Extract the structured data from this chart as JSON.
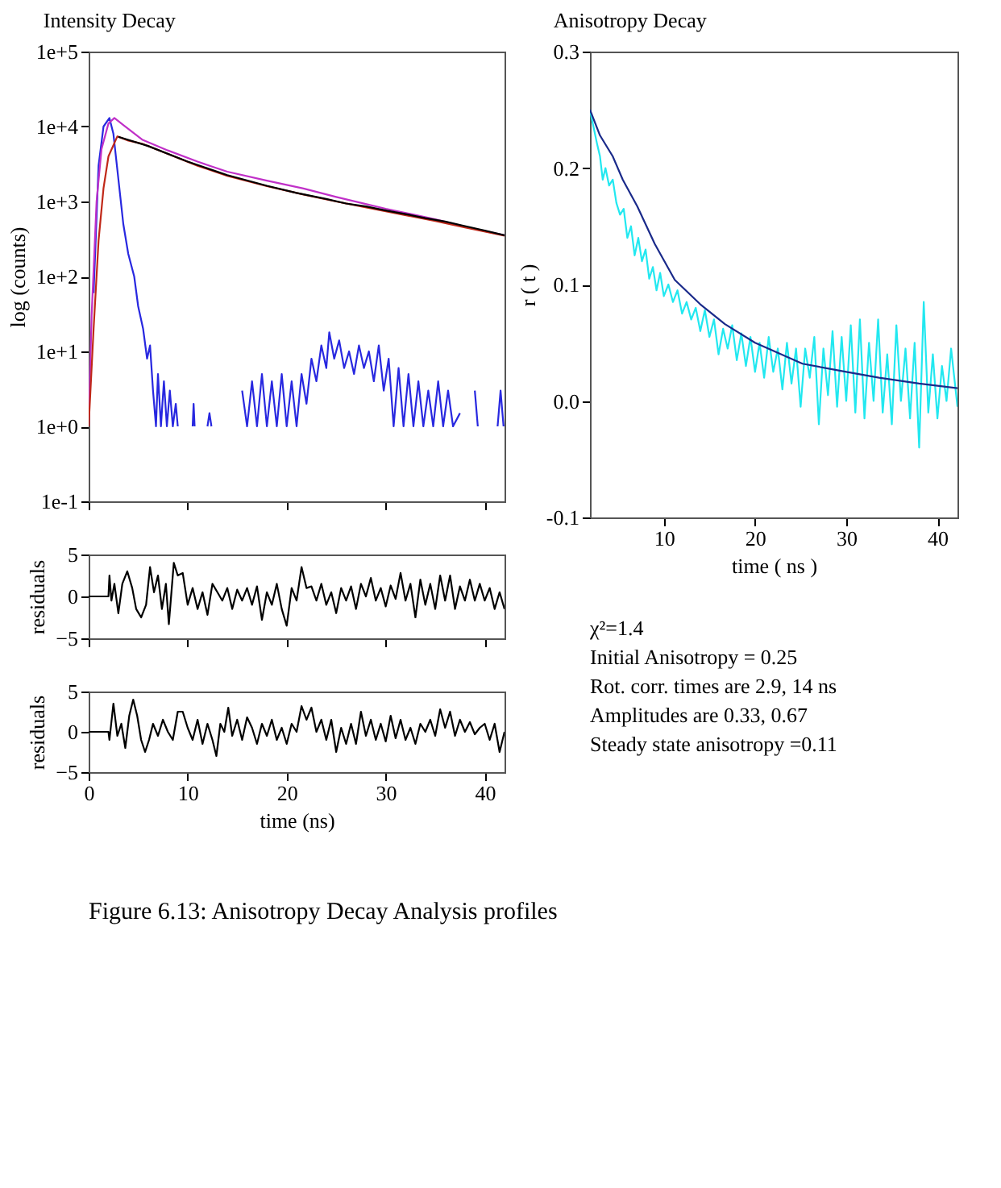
{
  "chart_data": [
    {
      "type": "line",
      "title": "Intensity Decay",
      "ylabel": "log (counts)",
      "log": "y",
      "xlim": [
        0,
        42
      ],
      "xticks": [
        0,
        10,
        20,
        30,
        40
      ],
      "ylim": [
        0.1,
        100000
      ],
      "yticks": [
        {
          "value": 0.1,
          "label": "1e-1"
        },
        {
          "value": 1,
          "label": "1e+0"
        },
        {
          "value": 10,
          "label": "1e+1"
        },
        {
          "value": 100,
          "label": "1e+2"
        },
        {
          "value": 1000,
          "label": "1e+3"
        },
        {
          "value": 10000,
          "label": "1e+4"
        },
        {
          "value": 100000,
          "label": "1e+5"
        }
      ],
      "tick_labels": "y",
      "series": [
        {
          "color": "#2828e0",
          "x": [
            0.5,
            1.0,
            1.5,
            2.1,
            2.5,
            3.0,
            3.5,
            4.0,
            4.6,
            5.0,
            5.5,
            5.9,
            6.2,
            6.5,
            6.8,
            7.0,
            7.3,
            7.6,
            7.9,
            8.2,
            8.5,
            8.8,
            9.0,
            9.5,
            10.5,
            10.6,
            10.7,
            11,
            12,
            12.2,
            12.4,
            13,
            15.5,
            16,
            16.5,
            17,
            17.5,
            18,
            18.5,
            19,
            19.5,
            20,
            20.5,
            21,
            21.5,
            22,
            22.5,
            23,
            23.5,
            24,
            24.3,
            24.8,
            25.3,
            25.8,
            26.3,
            26.8,
            27.3,
            27.8,
            28.3,
            28.8,
            29.3,
            29.8,
            30.3,
            30.8,
            31.3,
            31.8,
            32.3,
            32.8,
            33.3,
            33.8,
            34.3,
            34.8,
            35.3,
            35.8,
            36.3,
            36.8,
            37.5,
            38,
            39,
            39.3,
            39.8,
            41.3,
            41.6,
            41.9
          ],
          "values": [
            60,
            3000,
            10000,
            13000,
            8000,
            2000,
            500,
            200,
            100,
            40,
            20,
            8,
            12,
            3,
            1,
            5,
            1,
            4,
            1,
            3,
            1,
            2,
            1,
            null,
            1,
            2,
            1,
            null,
            1,
            1.5,
            1,
            null,
            3,
            1,
            4,
            1,
            5,
            1,
            4,
            1,
            5,
            1,
            4,
            1,
            5,
            2,
            8,
            4,
            12,
            6,
            18,
            8,
            14,
            6,
            10,
            5,
            12,
            6,
            10,
            4,
            12,
            3,
            8,
            1,
            6,
            1,
            5,
            1,
            4,
            1,
            3,
            1,
            4,
            1,
            3,
            1,
            1.5,
            null,
            3,
            1,
            null,
            1,
            3,
            1
          ]
        },
        {
          "color": "#c030c8",
          "x": [
            0,
            0.3,
            0.8,
            1.3,
            2.0,
            2.6,
            3.5,
            5.4,
            8,
            11,
            14,
            18,
            21.7,
            25,
            30,
            35,
            38,
            42
          ],
          "values": [
            1,
            30,
            1000,
            5000,
            11000,
            13000,
            10500,
            6700,
            4800,
            3400,
            2500,
            1900,
            1490,
            1150,
            800,
            580,
            460,
            355
          ]
        },
        {
          "color": "#c02818",
          "x": [
            0,
            0.5,
            1,
            1.5,
            2,
            2.9,
            4,
            5.4,
            8,
            11,
            14,
            18,
            21.7,
            25,
            30,
            35,
            38,
            42
          ],
          "values": [
            1,
            20,
            300,
            1500,
            4000,
            7400,
            6500,
            5900,
            4300,
            3000,
            2200,
            1600,
            1240,
            1000,
            740,
            550,
            450,
            350
          ]
        },
        {
          "color": "#000000",
          "x": [
            3.0,
            6,
            10,
            14,
            18,
            21,
            24,
            26,
            28,
            30,
            32,
            34,
            36,
            38,
            40,
            42
          ],
          "values": [
            7300,
            5500,
            3400,
            2250,
            1620,
            1300,
            1080,
            940,
            860,
            760,
            680,
            600,
            540,
            470,
            410,
            355
          ]
        }
      ]
    },
    {
      "type": "line",
      "ylabel": "residuals",
      "xlim": [
        0,
        42
      ],
      "xticks": [
        0,
        10,
        20,
        30,
        40
      ],
      "ylim": [
        -5,
        5
      ],
      "yticks": [
        -5,
        0,
        5
      ],
      "tick_labels": "y",
      "series": [
        {
          "color": "#000000",
          "x": [
            0,
            2,
            2.1,
            2.3,
            2.6,
            3.0,
            3.4,
            3.9,
            4.4,
            4.8,
            5.3,
            5.8,
            6.2,
            6.6,
            7.0,
            7.4,
            7.8,
            8.1,
            8.6,
            9.0,
            9.5,
            10,
            10.5,
            11,
            11.5,
            12,
            12.5,
            13,
            13.5,
            14,
            14.5,
            15,
            15.5,
            16,
            16.5,
            17,
            17.5,
            18,
            18.5,
            19,
            19.5,
            20,
            20.5,
            21,
            21.5,
            22,
            22.5,
            23,
            23.5,
            24,
            24.5,
            25,
            25.5,
            26,
            26.5,
            27,
            27.5,
            28,
            28.5,
            29,
            29.5,
            30,
            30.5,
            31,
            31.5,
            32,
            32.5,
            33,
            33.5,
            34,
            34.5,
            35,
            35.5,
            36,
            36.5,
            37,
            37.5,
            38,
            38.5,
            39,
            39.5,
            40,
            40.5,
            41,
            41.5,
            42
          ],
          "values": [
            0,
            0,
            2.5,
            -0.5,
            1.5,
            -2.0,
            1.5,
            3.0,
            1,
            -1.5,
            -2.5,
            -1.0,
            3.5,
            0.5,
            2.5,
            -1.5,
            1.5,
            -3.3,
            4.0,
            2.5,
            2.8,
            -1,
            1,
            -1.5,
            0.5,
            -2.2,
            1.5,
            0.5,
            -0.5,
            1,
            -1.5,
            0.8,
            -0.5,
            1,
            -1,
            1.2,
            -2.8,
            0.5,
            -1,
            1.5,
            -1.5,
            -3.5,
            1,
            -0.5,
            3.5,
            1,
            1.2,
            -0.5,
            1.5,
            -1,
            0.5,
            -2,
            1,
            -0.5,
            1.2,
            -1.5,
            1.5,
            0,
            2.2,
            -0.5,
            1,
            -1.2,
            1.3,
            -0.3,
            2.8,
            -0.5,
            1.5,
            -2.5,
            2,
            -1,
            1.5,
            -1.5,
            2.5,
            -0.5,
            2.5,
            -1.5,
            1.2,
            -0.5,
            2,
            -0.5,
            1.5,
            -0.5,
            1.0,
            -1.5,
            0.5,
            -1.5
          ]
        }
      ]
    },
    {
      "type": "line",
      "ylabel": "residuals",
      "xlabel": "time (ns)",
      "xlim": [
        0,
        42
      ],
      "xticks": [
        0,
        10,
        20,
        30,
        40
      ],
      "ylim": [
        -5,
        5
      ],
      "yticks": [
        -5,
        0,
        5
      ],
      "series": [
        {
          "color": "#000000",
          "x": [
            0,
            2,
            2.1,
            2.5,
            2.9,
            3.3,
            3.7,
            4.1,
            4.5,
            4.9,
            5.3,
            5.7,
            6.1,
            6.5,
            7,
            7.5,
            8,
            8.5,
            9,
            9.5,
            10,
            10.5,
            11,
            11.5,
            12,
            12.5,
            12.9,
            13.3,
            13.7,
            14.1,
            14.5,
            15,
            15.5,
            16,
            16.5,
            17,
            17.5,
            18,
            18.5,
            19,
            19.5,
            20,
            20.5,
            21,
            21.5,
            22,
            22.5,
            23,
            23.5,
            24,
            24.5,
            25,
            25.5,
            26,
            26.5,
            27,
            27.5,
            28,
            28.5,
            29,
            29.5,
            30,
            30.5,
            31,
            31.5,
            32,
            32.5,
            33,
            33.5,
            34,
            34.5,
            35,
            35.5,
            36,
            36.5,
            37,
            37.5,
            38,
            38.5,
            39,
            39.5,
            40,
            40.5,
            41,
            41.5,
            42
          ],
          "values": [
            0,
            0,
            -1,
            3.5,
            -0.5,
            1,
            -2,
            2,
            4.0,
            2,
            -1,
            -2.5,
            -1,
            1,
            -0.5,
            1.5,
            0,
            -1,
            2.5,
            2.5,
            0.5,
            -1,
            1.5,
            -1.5,
            1,
            -1,
            -3,
            1,
            0,
            3,
            -0.5,
            1.5,
            -1,
            1.8,
            0.5,
            -1.5,
            1,
            -0.5,
            1.5,
            -1,
            0.5,
            -1.5,
            1,
            0,
            3.2,
            1.5,
            3.0,
            0,
            1.5,
            -1,
            1.5,
            -2.5,
            0.5,
            -1.5,
            1,
            -1.5,
            2.5,
            -0.5,
            1.5,
            -1,
            1,
            -1.2,
            2,
            -0.8,
            1.5,
            -1,
            0.5,
            -1.5,
            1,
            0,
            1.5,
            -0.5,
            2.8,
            0.5,
            2.5,
            -0.5,
            1.5,
            0,
            1.2,
            -0.3,
            0.5,
            1,
            -1,
            1,
            -2.5,
            0
          ]
        }
      ]
    },
    {
      "type": "line",
      "title": "Anisotropy Decay",
      "xlabel": "time ( ns )",
      "ylabel": "r ( t )",
      "xlim": [
        1.9,
        42.2
      ],
      "xticks": [
        10,
        20,
        30,
        40
      ],
      "ylim": [
        -0.1,
        0.3
      ],
      "yticks": [
        {
          "value": -0.1,
          "label": "-0.1"
        },
        {
          "value": 0,
          "label": "0.0"
        },
        {
          "value": 0.1,
          "label": "0.1"
        },
        {
          "value": 0.2,
          "label": "0.2"
        },
        {
          "value": 0.3,
          "label": "0.3"
        }
      ],
      "series": [
        {
          "color": "#22e8f0",
          "x": [
            1.9,
            2.3,
            2.7,
            3.0,
            3.3,
            3.6,
            4.0,
            4.4,
            4.8,
            5.2,
            5.6,
            6.0,
            6.4,
            6.8,
            7.2,
            7.6,
            8.0,
            8.4,
            8.8,
            9.2,
            9.6,
            10,
            10.5,
            11,
            11.5,
            12,
            12.5,
            13,
            13.5,
            14,
            14.5,
            15,
            15.5,
            16,
            16.5,
            17,
            17.5,
            18,
            18.5,
            19,
            19.5,
            20,
            20.5,
            21,
            21.5,
            22,
            22.5,
            23,
            23.5,
            24,
            24.5,
            25,
            25.5,
            26,
            26.5,
            27,
            27.5,
            28,
            28.5,
            29,
            29.5,
            30,
            30.5,
            31,
            31.5,
            32,
            32.5,
            33,
            33.5,
            34,
            34.5,
            35,
            35.5,
            36,
            36.5,
            37,
            37.5,
            38,
            38.5,
            39,
            39.5,
            40,
            40.5,
            41,
            41.5,
            42.2
          ],
          "values": [
            0.25,
            0.235,
            0.22,
            0.21,
            0.19,
            0.2,
            0.185,
            0.19,
            0.17,
            0.16,
            0.165,
            0.14,
            0.15,
            0.125,
            0.14,
            0.12,
            0.13,
            0.105,
            0.115,
            0.095,
            0.11,
            0.09,
            0.1,
            0.085,
            0.095,
            0.075,
            0.085,
            0.07,
            0.08,
            0.06,
            0.078,
            0.055,
            0.07,
            0.04,
            0.062,
            0.045,
            0.065,
            0.035,
            0.058,
            0.03,
            0.055,
            0.025,
            0.05,
            0.02,
            0.055,
            0.025,
            0.045,
            0.01,
            0.05,
            0.015,
            0.045,
            -0.005,
            0.045,
            0.02,
            0.055,
            -0.02,
            0.045,
            0.005,
            0.06,
            -0.005,
            0.055,
            0.0,
            0.065,
            -0.01,
            0.07,
            -0.015,
            0.05,
            0.0,
            0.07,
            -0.01,
            0.04,
            -0.02,
            0.065,
            0.0,
            0.045,
            -0.015,
            0.05,
            -0.04,
            0.085,
            -0.01,
            0.04,
            -0.015,
            0.03,
            0.0,
            0.045,
            -0.005
          ]
        },
        {
          "color": "#1a2a8a",
          "x": [
            1.9,
            3,
            4.4,
            5.5,
            7.1,
            9,
            11.2,
            14,
            16.7,
            20,
            25.2,
            30,
            33.6,
            38,
            42.2
          ],
          "values": [
            0.25,
            0.228,
            0.21,
            0.19,
            0.167,
            0.135,
            0.104,
            0.083,
            0.066,
            0.05,
            0.032,
            0.025,
            0.02,
            0.015,
            0.011
          ]
        }
      ]
    },
    {
      "type": "other",
      "annotations": [
        "χ²=1.4",
        "Initial Anisotropy = 0.25",
        "Rot. corr. times are  2.9, 14 ns",
        "Amplitudes are  0.33, 0.67",
        "Steady state anisotropy =0.11"
      ]
    },
    {
      "type": "other",
      "annotations": [
        "Figure 6.13: Anisotropy Decay Analysis profiles"
      ]
    }
  ]
}
